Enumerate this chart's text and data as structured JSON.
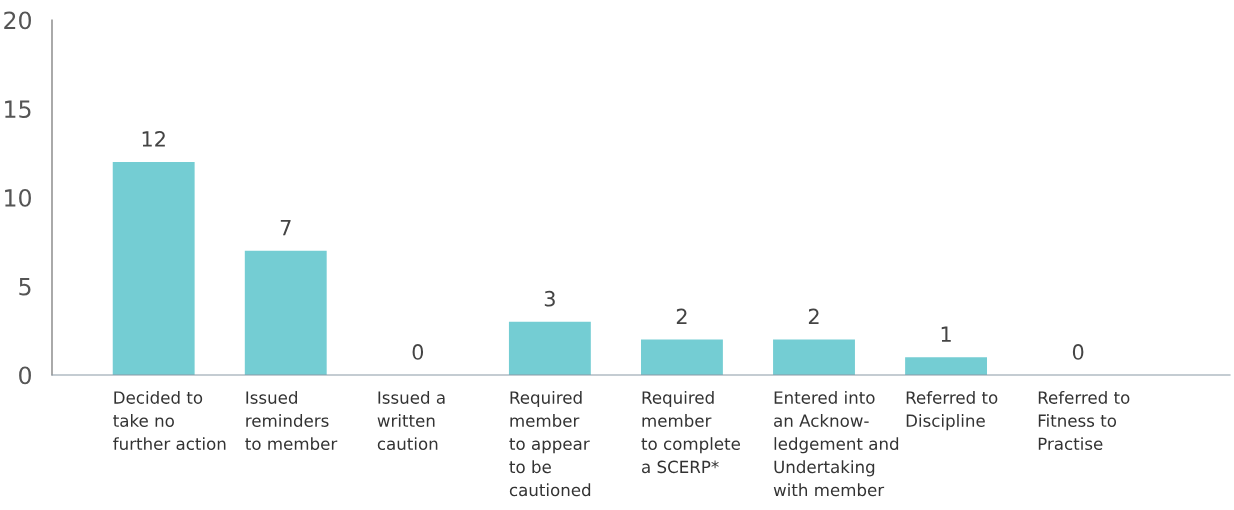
{
  "chart_data": {
    "type": "bar",
    "categories": [
      "Decided to\ntake no\nfurther action",
      "Issued\nreminders\nto member",
      "Issued a\nwritten\ncaution",
      "Required\nmember\nto appear\nto be\ncautioned",
      "Required\nmember\nto complete\na SCERP*",
      "Entered into\nan Acknow-\nledgement and\nUndertaking\nwith member",
      "Referred to\nDiscipline",
      "Referred to\nFitness to\nPractise"
    ],
    "values": [
      12,
      7,
      0,
      3,
      2,
      2,
      1,
      0
    ],
    "color": "#74cdd3",
    "ylim": [
      0,
      20
    ],
    "yticks": [
      0,
      5,
      10,
      15,
      20
    ],
    "data_labels": true,
    "grid": false,
    "legend": false
  }
}
